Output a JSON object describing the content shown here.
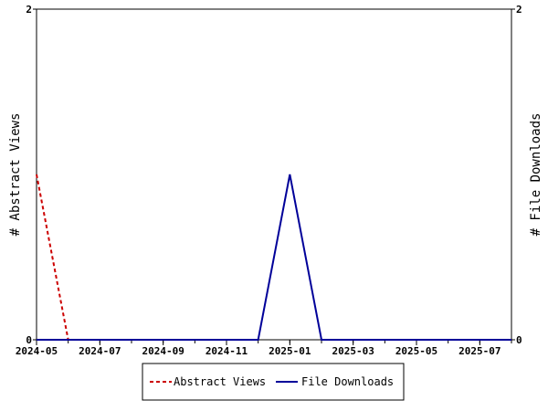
{
  "chart_data": {
    "type": "line",
    "x": [
      "2024-05",
      "2024-06",
      "2024-07",
      "2024-08",
      "2024-09",
      "2024-10",
      "2024-11",
      "2024-12",
      "2025-01",
      "2025-02",
      "2025-03",
      "2025-04",
      "2025-05",
      "2025-06",
      "2025-07",
      "2025-08"
    ],
    "x_tick_labels": [
      "2024-05",
      "2024-07",
      "2024-09",
      "2024-11",
      "2025-01",
      "2025-03",
      "2025-05",
      "2025-07"
    ],
    "series": [
      {
        "name": "Abstract Views",
        "axis": "left",
        "color": "#cc0000",
        "dash": "dashed",
        "values": [
          1,
          0,
          0,
          0,
          0,
          0,
          0,
          0,
          0,
          0,
          0,
          0,
          0,
          0,
          0,
          0
        ]
      },
      {
        "name": "File Downloads",
        "axis": "right",
        "color": "#000099",
        "dash": "solid",
        "values": [
          0,
          0,
          0,
          0,
          0,
          0,
          0,
          0,
          1,
          0,
          0,
          0,
          0,
          0,
          0,
          0
        ]
      }
    ],
    "ylabel_left": "# Abstract Views",
    "ylabel_right": "# File Downloads",
    "ylim_left": [
      0,
      2
    ],
    "ylim_right": [
      0,
      2
    ],
    "y_ticks_left": [
      "0",
      "2"
    ],
    "y_ticks_right": [
      "0",
      "2"
    ],
    "legend_position": "bottom-center",
    "grid": false
  }
}
